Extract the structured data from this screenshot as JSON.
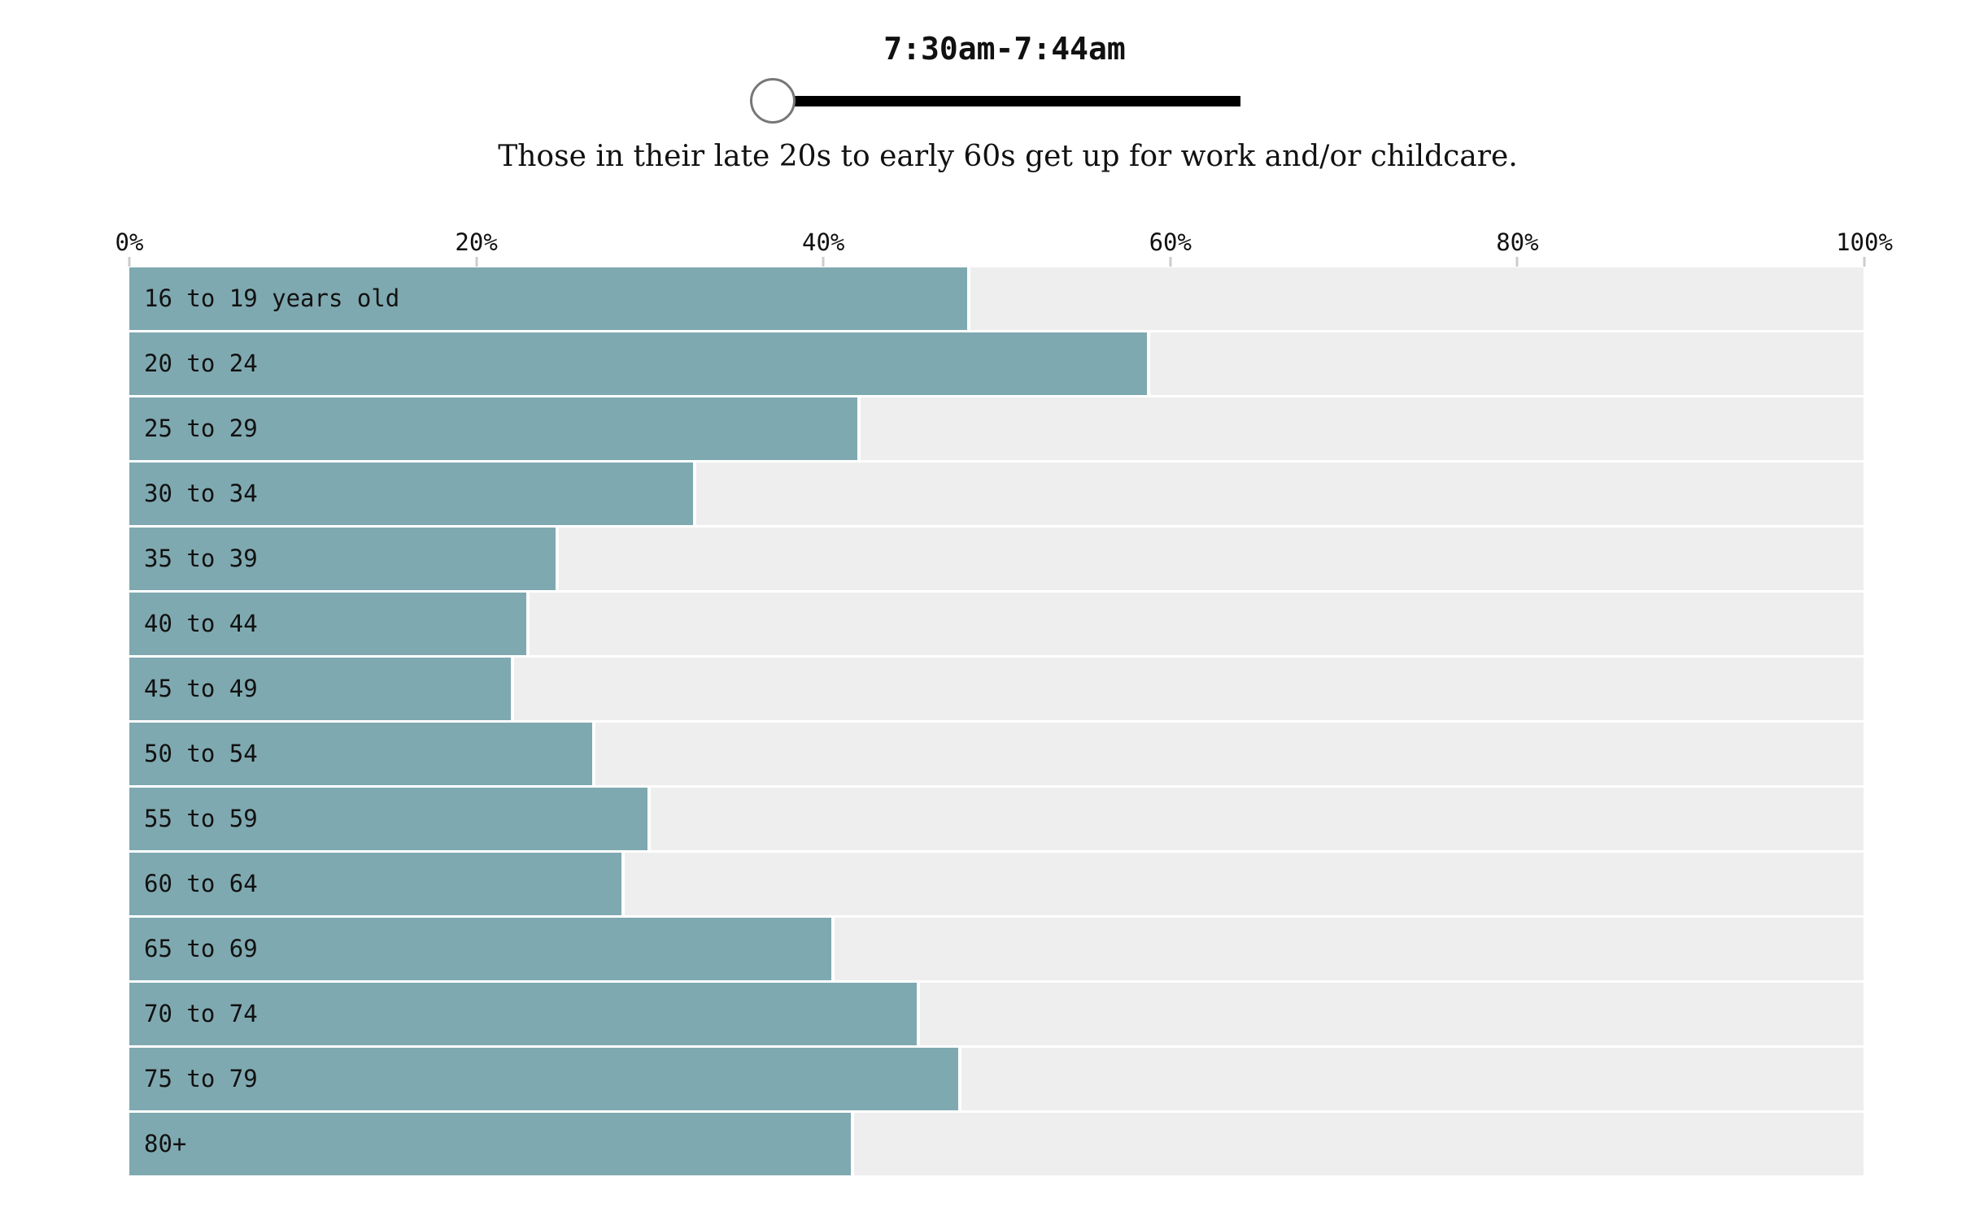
{
  "slider": {
    "label": "7:30am-7:44am"
  },
  "subtitle": "Those in their late 20s to early 60s get up for work and/or childcare.",
  "colors": {
    "bar": "#7FA9B0",
    "track_background": "#EEEEEE",
    "tick": "#CCCCCC",
    "text": "#111111",
    "slider_track": "#000000",
    "knob_border": "#777777"
  },
  "chart_data": {
    "type": "bar",
    "orientation": "horizontal",
    "title": "7:30am-7:44am",
    "subtitle": "Those in their late 20s to early 60s get up for work and/or childcare.",
    "categories": [
      "16 to 19 years old",
      "20 to 24",
      "25 to 29",
      "30 to 34",
      "35 to 39",
      "40 to 44",
      "45 to 49",
      "50 to 54",
      "55 to 59",
      "60 to 64",
      "65 to 69",
      "70 to 74",
      "75 to 79",
      "80+"
    ],
    "values": [
      48.3,
      58.7,
      42.0,
      32.5,
      24.6,
      22.9,
      22.0,
      26.7,
      29.9,
      28.4,
      40.5,
      45.4,
      47.8,
      41.6
    ],
    "unit": "%",
    "xlabel": "",
    "ylabel": "",
    "xlim": [
      0,
      100
    ],
    "x_tick_labels": [
      "0%",
      "20%",
      "40%",
      "60%",
      "80%",
      "100%"
    ],
    "x_tick_values": [
      0,
      20,
      40,
      60,
      80,
      100
    ],
    "grid": false,
    "legend": false
  }
}
